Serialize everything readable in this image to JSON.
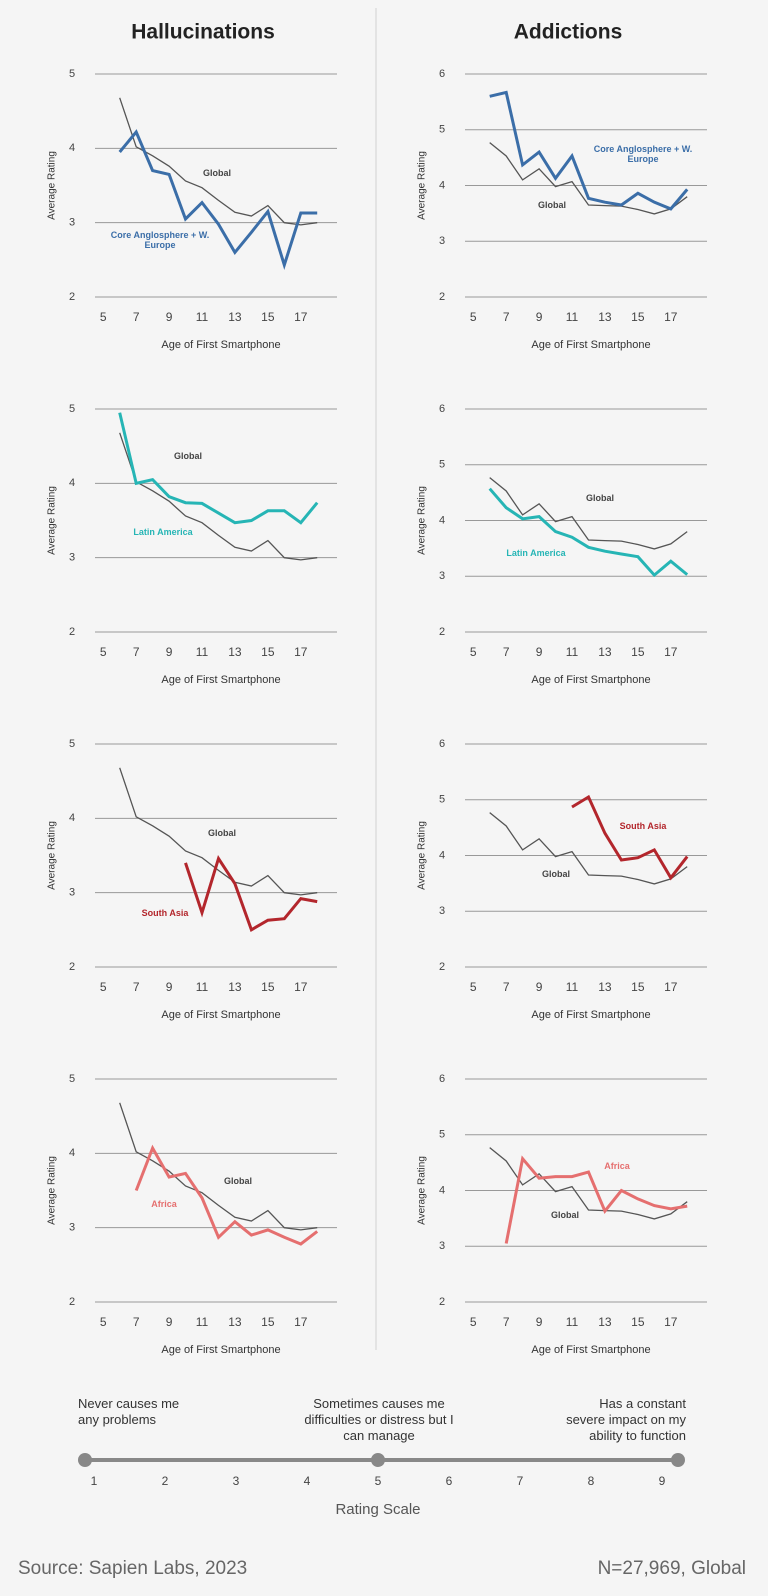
{
  "column_titles": [
    "Hallucinations",
    "Addictions"
  ],
  "chart_data": [
    {
      "type": "line",
      "y_label": "Average Rating",
      "x_label": "Age of First Smartphone",
      "x": [
        6,
        7,
        8,
        9,
        10,
        11,
        12,
        13,
        14,
        15,
        16,
        17,
        18
      ],
      "xlim": [
        4.5,
        19.2
      ],
      "xticks": [
        5,
        7,
        9,
        11,
        13,
        15,
        17
      ],
      "ylim": [
        2,
        5
      ],
      "yticks": [
        2,
        3,
        4,
        5
      ],
      "grid": true,
      "series": [
        {
          "name": "Global",
          "color": "#555555",
          "values": [
            4.68,
            4.02,
            3.9,
            3.76,
            3.56,
            3.47,
            3.3,
            3.14,
            3.09,
            3.23,
            3.0,
            2.97,
            3.0
          ]
        },
        {
          "name": "Core Anglosphere + W. Europe",
          "color": "#3b6ea8",
          "values": [
            3.95,
            4.22,
            3.7,
            3.65,
            3.05,
            3.27,
            2.98,
            2.6,
            2.87,
            3.15,
            2.43,
            3.13,
            3.13
          ]
        }
      ]
    },
    {
      "type": "line",
      "y_label": "Average Rating",
      "x_label": "Age of First Smartphone",
      "x": [
        6,
        7,
        8,
        9,
        10,
        11,
        12,
        13,
        14,
        15,
        16,
        17,
        18
      ],
      "xlim": [
        4.5,
        19.2
      ],
      "xticks": [
        5,
        7,
        9,
        11,
        13,
        15,
        17
      ],
      "ylim": [
        2,
        6
      ],
      "yticks": [
        2,
        3,
        4,
        5,
        6
      ],
      "grid": true,
      "series": [
        {
          "name": "Global",
          "color": "#555555",
          "values": [
            4.77,
            4.53,
            4.1,
            4.3,
            3.98,
            4.07,
            3.65,
            3.64,
            3.63,
            3.57,
            3.49,
            3.58,
            3.8
          ]
        },
        {
          "name": "Core Anglosphere + W. Europe",
          "color": "#3b6ea8",
          "values": [
            5.6,
            5.67,
            4.37,
            4.6,
            4.13,
            4.53,
            3.77,
            3.7,
            3.65,
            3.86,
            3.7,
            3.58,
            3.93
          ]
        }
      ]
    },
    {
      "type": "line",
      "y_label": "Average Rating",
      "x_label": "Age of First Smartphone",
      "x": [
        6,
        7,
        8,
        9,
        10,
        11,
        12,
        13,
        14,
        15,
        16,
        17,
        18
      ],
      "xlim": [
        4.5,
        19.2
      ],
      "xticks": [
        5,
        7,
        9,
        11,
        13,
        15,
        17
      ],
      "ylim": [
        2,
        5
      ],
      "yticks": [
        2,
        3,
        4,
        5
      ],
      "grid": true,
      "series": [
        {
          "name": "Global",
          "color": "#555555",
          "values": [
            4.68,
            4.02,
            3.9,
            3.76,
            3.56,
            3.47,
            3.3,
            3.14,
            3.09,
            3.23,
            3.0,
            2.97,
            3.0
          ]
        },
        {
          "name": "Latin America",
          "color": "#26b5b5",
          "values": [
            4.95,
            4.0,
            4.05,
            3.82,
            3.74,
            3.73,
            3.6,
            3.47,
            3.5,
            3.63,
            3.63,
            3.47,
            3.74
          ]
        }
      ]
    },
    {
      "type": "line",
      "y_label": "Average Rating",
      "x_label": "Age of First Smartphone",
      "x": [
        6,
        7,
        8,
        9,
        10,
        11,
        12,
        13,
        14,
        15,
        16,
        17,
        18
      ],
      "xlim": [
        4.5,
        19.2
      ],
      "xticks": [
        5,
        7,
        9,
        11,
        13,
        15,
        17
      ],
      "ylim": [
        2,
        6
      ],
      "yticks": [
        2,
        3,
        4,
        5,
        6
      ],
      "grid": true,
      "series": [
        {
          "name": "Global",
          "color": "#555555",
          "values": [
            4.77,
            4.53,
            4.1,
            4.3,
            3.98,
            4.07,
            3.65,
            3.64,
            3.63,
            3.57,
            3.49,
            3.58,
            3.8
          ]
        },
        {
          "name": "Latin America",
          "color": "#26b5b5",
          "values": [
            4.57,
            4.23,
            4.03,
            4.07,
            3.8,
            3.7,
            3.52,
            3.45,
            3.4,
            3.35,
            3.02,
            3.27,
            3.03
          ]
        }
      ]
    },
    {
      "type": "line",
      "y_label": "Average Rating",
      "x_label": "Age of First Smartphone",
      "x": [
        6,
        7,
        8,
        9,
        10,
        11,
        12,
        13,
        14,
        15,
        16,
        17,
        18
      ],
      "xlim": [
        4.5,
        19.2
      ],
      "xticks": [
        5,
        7,
        9,
        11,
        13,
        15,
        17
      ],
      "ylim": [
        2,
        5
      ],
      "yticks": [
        2,
        3,
        4,
        5
      ],
      "grid": true,
      "series": [
        {
          "name": "Global",
          "color": "#555555",
          "values": [
            4.68,
            4.02,
            3.9,
            3.76,
            3.56,
            3.47,
            3.3,
            3.14,
            3.09,
            3.23,
            3.0,
            2.97,
            3.0
          ]
        },
        {
          "name": "South Asia",
          "color": "#b3262c",
          "values": [
            null,
            null,
            null,
            null,
            3.4,
            2.73,
            3.46,
            3.12,
            2.5,
            2.63,
            2.65,
            2.92,
            2.88
          ]
        }
      ]
    },
    {
      "type": "line",
      "y_label": "Average Rating",
      "x_label": "Age of First Smartphone",
      "x": [
        6,
        7,
        8,
        9,
        10,
        11,
        12,
        13,
        14,
        15,
        16,
        17,
        18
      ],
      "xlim": [
        4.5,
        19.2
      ],
      "xticks": [
        5,
        7,
        9,
        11,
        13,
        15,
        17
      ],
      "ylim": [
        2,
        6
      ],
      "yticks": [
        2,
        3,
        4,
        5,
        6
      ],
      "grid": true,
      "series": [
        {
          "name": "Global",
          "color": "#555555",
          "values": [
            4.77,
            4.53,
            4.1,
            4.3,
            3.98,
            4.07,
            3.65,
            3.64,
            3.63,
            3.57,
            3.49,
            3.58,
            3.8
          ]
        },
        {
          "name": "South Asia",
          "color": "#b3262c",
          "values": [
            null,
            null,
            null,
            null,
            null,
            4.87,
            5.05,
            4.4,
            3.92,
            3.96,
            4.1,
            3.6,
            3.98
          ]
        }
      ]
    },
    {
      "type": "line",
      "y_label": "Average Rating",
      "x_label": "Age of First Smartphone",
      "x": [
        6,
        7,
        8,
        9,
        10,
        11,
        12,
        13,
        14,
        15,
        16,
        17,
        18
      ],
      "xlim": [
        4.5,
        19.2
      ],
      "xticks": [
        5,
        7,
        9,
        11,
        13,
        15,
        17
      ],
      "ylim": [
        2,
        5
      ],
      "yticks": [
        2,
        3,
        4,
        5
      ],
      "grid": true,
      "series": [
        {
          "name": "Global",
          "color": "#555555",
          "values": [
            4.68,
            4.02,
            3.9,
            3.76,
            3.56,
            3.47,
            3.3,
            3.14,
            3.09,
            3.23,
            3.0,
            2.97,
            3.0
          ]
        },
        {
          "name": "Africa",
          "color": "#e56f6f",
          "values": [
            null,
            3.5,
            4.07,
            3.68,
            3.73,
            3.4,
            2.87,
            3.08,
            2.9,
            2.97,
            2.87,
            2.78,
            2.95
          ]
        }
      ]
    },
    {
      "type": "line",
      "y_label": "Average Rating",
      "x_label": "Age of First Smartphone",
      "x": [
        6,
        7,
        8,
        9,
        10,
        11,
        12,
        13,
        14,
        15,
        16,
        17,
        18
      ],
      "xlim": [
        4.5,
        19.2
      ],
      "xticks": [
        5,
        7,
        9,
        11,
        13,
        15,
        17
      ],
      "ylim": [
        2,
        6
      ],
      "yticks": [
        2,
        3,
        4,
        5,
        6
      ],
      "grid": true,
      "series": [
        {
          "name": "Global",
          "color": "#555555",
          "values": [
            4.77,
            4.53,
            4.1,
            4.3,
            3.98,
            4.07,
            3.65,
            3.64,
            3.63,
            3.57,
            3.49,
            3.58,
            3.8
          ]
        },
        {
          "name": "Africa",
          "color": "#e56f6f",
          "values": [
            null,
            3.05,
            4.57,
            4.22,
            4.25,
            4.25,
            4.33,
            3.63,
            4.0,
            3.85,
            3.73,
            3.67,
            3.72
          ]
        }
      ]
    }
  ],
  "rating_scale": {
    "title": "Rating Scale",
    "ticks": [
      1,
      2,
      3,
      4,
      5,
      6,
      7,
      8,
      9
    ],
    "descriptions": [
      "Never causes me any problems",
      "Sometimes causes me difficulties or distress but I can manage",
      "Has a constant severe impact on my ability to function"
    ]
  },
  "footer": {
    "source": "Source: Sapien Labs, 2023",
    "note": "N=27,969, Global"
  }
}
